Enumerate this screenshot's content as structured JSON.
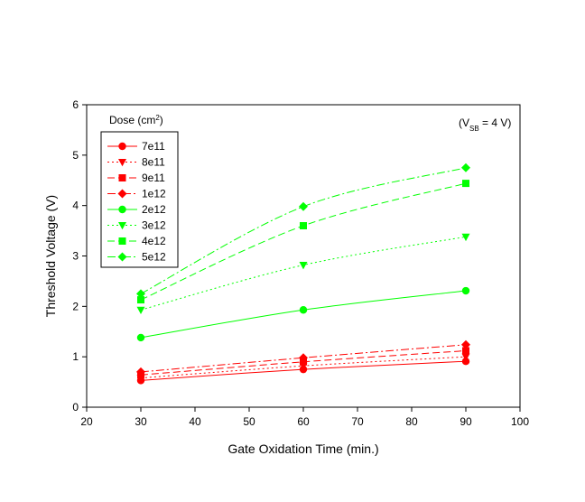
{
  "chart_data": {
    "type": "line",
    "xlabel": "Gate Oxidation Time (min.)",
    "ylabel": "Threshold Voltage (V)",
    "xlim": [
      20,
      100
    ],
    "ylim": [
      0,
      6
    ],
    "xticks": [
      20,
      30,
      40,
      50,
      60,
      70,
      80,
      90,
      100
    ],
    "yticks": [
      0,
      1,
      2,
      3,
      4,
      5,
      6
    ],
    "grid": false,
    "legend_title": {
      "text": "Dose (cm",
      "sup": "2",
      "close": ")"
    },
    "legend_position": "top-left",
    "annotation": {
      "prefix": "(V",
      "sub": "SB",
      "suffix": " = 4 V)"
    },
    "x": [
      30,
      60,
      90
    ],
    "series": [
      {
        "name": "7e11",
        "values": [
          0.53,
          0.75,
          0.91
        ],
        "color": "#ff0000",
        "marker": "circle",
        "dash": "solid"
      },
      {
        "name": "8e11",
        "values": [
          0.58,
          0.82,
          1.0
        ],
        "color": "#ff0000",
        "marker": "triangle-down",
        "dash": "dotted"
      },
      {
        "name": "9e11",
        "values": [
          0.64,
          0.9,
          1.12
        ],
        "color": "#ff0000",
        "marker": "square",
        "dash": "dashed"
      },
      {
        "name": "1e12",
        "values": [
          0.7,
          0.98,
          1.24
        ],
        "color": "#ff0000",
        "marker": "diamond",
        "dash": "dashdot"
      },
      {
        "name": "2e12",
        "values": [
          1.38,
          1.93,
          2.31
        ],
        "color": "#00ff00",
        "marker": "circle",
        "dash": "solid"
      },
      {
        "name": "3e12",
        "values": [
          1.93,
          2.82,
          3.38
        ],
        "color": "#00ff00",
        "marker": "triangle-down",
        "dash": "dotted"
      },
      {
        "name": "4e12",
        "values": [
          2.13,
          3.6,
          4.44
        ],
        "color": "#00ff00",
        "marker": "square",
        "dash": "dashed"
      },
      {
        "name": "5e12",
        "values": [
          2.25,
          3.98,
          4.75
        ],
        "color": "#00ff00",
        "marker": "diamond",
        "dash": "dashdot"
      }
    ]
  }
}
